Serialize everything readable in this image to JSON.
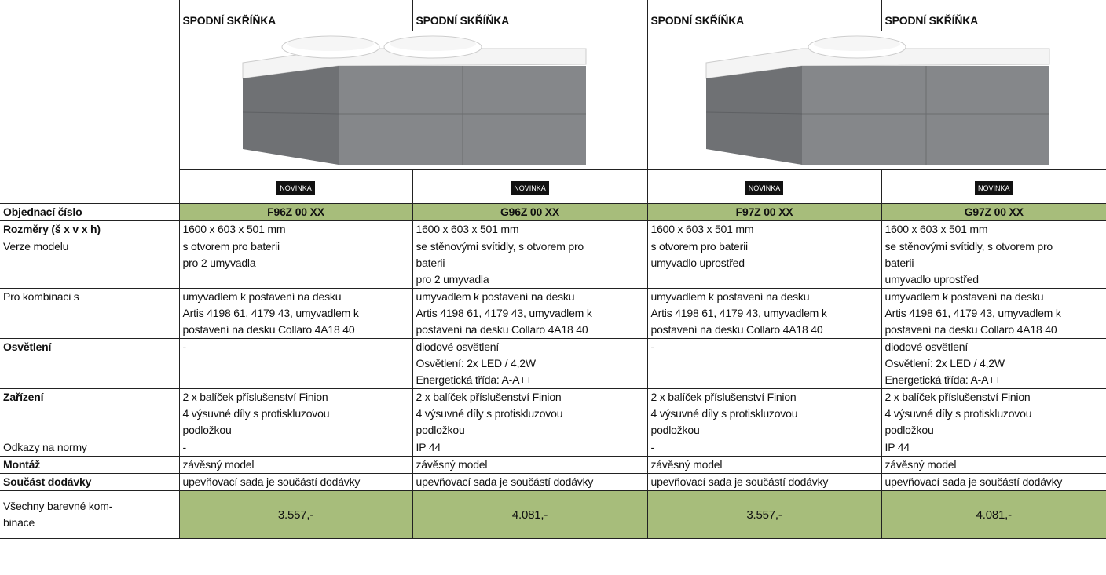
{
  "header": {
    "columns": [
      "SPODNÍ SKŘÍŇKA",
      "SPODNÍ SKŘÍŇKA",
      "SPODNÍ SKŘÍŇKA",
      "SPODNÍ SKŘÍŇKA"
    ]
  },
  "badges": [
    "NOVINKA",
    "NOVINKA",
    "NOVINKA",
    "NOVINKA"
  ],
  "rows": [
    {
      "label": [
        "Objednací číslo"
      ],
      "bold": true,
      "highlight": true,
      "cells": [
        [
          "F96Z 00 XX"
        ],
        [
          "G96Z 00 XX"
        ],
        [
          "F97Z 00 XX"
        ],
        [
          "G97Z 00 XX"
        ]
      ]
    },
    {
      "label": [
        "Rozměry (š x v x h)"
      ],
      "bold": true,
      "highlight": false,
      "cells": [
        [
          "1600 x 603 x 501 mm"
        ],
        [
          "1600 x 603 x 501 mm"
        ],
        [
          "1600 x 603 x 501 mm"
        ],
        [
          "1600 x 603 x 501 mm"
        ]
      ]
    },
    {
      "label": [
        "Verze modelu"
      ],
      "bold": false,
      "highlight": false,
      "cells": [
        [
          "s otvorem pro baterii",
          "pro 2 umyvadla"
        ],
        [
          "se stěnovými svítidly, s otvorem pro",
          "baterii",
          "pro 2 umyvadla"
        ],
        [
          "s otvorem pro baterii",
          "umyvadlo uprostřed"
        ],
        [
          "se stěnovými svítidly, s otvorem pro",
          "baterii",
          "umyvadlo uprostřed"
        ]
      ]
    },
    {
      "label": [
        "Pro kombinaci s"
      ],
      "bold": false,
      "highlight": false,
      "cells": [
        [
          "umyvadlem k postavení na desku",
          "Artis 4198 61, 4179 43, umyvadlem k",
          "postavení na desku Collaro 4A18 40"
        ],
        [
          "umyvadlem k postavení na desku",
          "Artis 4198 61, 4179 43, umyvadlem k",
          "postavení na desku Collaro 4A18 40"
        ],
        [
          "umyvadlem k postavení na desku",
          "Artis 4198 61, 4179 43, umyvadlem k",
          "postavení na desku Collaro 4A18 40"
        ],
        [
          "umyvadlem k postavení na desku",
          "Artis 4198 61, 4179 43, umyvadlem k",
          "postavení na desku Collaro 4A18 40"
        ]
      ]
    },
    {
      "label": [
        "Osvětlení"
      ],
      "bold": true,
      "highlight": false,
      "cells": [
        [
          "-"
        ],
        [
          "diodové osvětlení",
          "Osvětlení: 2x LED / 4,2W",
          "Energetická třída: A-A++"
        ],
        [
          "-"
        ],
        [
          "diodové osvětlení",
          "Osvětlení: 2x LED / 4,2W",
          "Energetická třída: A-A++"
        ]
      ]
    },
    {
      "label": [
        "Zařízení"
      ],
      "bold": true,
      "highlight": false,
      "cells": [
        [
          "2 x balíček příslušenství Finion",
          "4 výsuvné díly s protiskluzovou",
          "podložkou"
        ],
        [
          "2 x balíček příslušenství Finion",
          "4 výsuvné díly s protiskluzovou",
          "podložkou"
        ],
        [
          "2 x balíček příslušenství Finion",
          "4 výsuvné díly s protiskluzovou",
          "podložkou"
        ],
        [
          "2 x balíček příslušenství Finion",
          "4 výsuvné díly s protiskluzovou",
          "podložkou"
        ]
      ]
    },
    {
      "label": [
        "Odkazy na normy"
      ],
      "bold": false,
      "highlight": false,
      "cells": [
        [
          "-"
        ],
        [
          "IP 44"
        ],
        [
          "-"
        ],
        [
          "IP 44"
        ]
      ]
    },
    {
      "label": [
        "Montáž"
      ],
      "bold": true,
      "highlight": false,
      "cells": [
        [
          "závěsný model"
        ],
        [
          "závěsný model"
        ],
        [
          "závěsný model"
        ],
        [
          "závěsný model"
        ]
      ]
    },
    {
      "label": [
        "Součást dodávky"
      ],
      "bold": true,
      "highlight": false,
      "cells": [
        [
          "upevňovací sada je součástí dodávky"
        ],
        [
          "upevňovací sada je součástí dodávky"
        ],
        [
          "upevňovací sada je součástí dodávky"
        ],
        [
          "upevňovací sada je součástí dodávky"
        ]
      ]
    },
    {
      "label": [
        "Všechny barevné kom-",
        "binace"
      ],
      "bold": false,
      "highlight": true,
      "cells": [
        [
          "3.557,-"
        ],
        [
          "4.081,-"
        ],
        [
          "3.557,-"
        ],
        [
          "4.081,-"
        ]
      ]
    }
  ]
}
